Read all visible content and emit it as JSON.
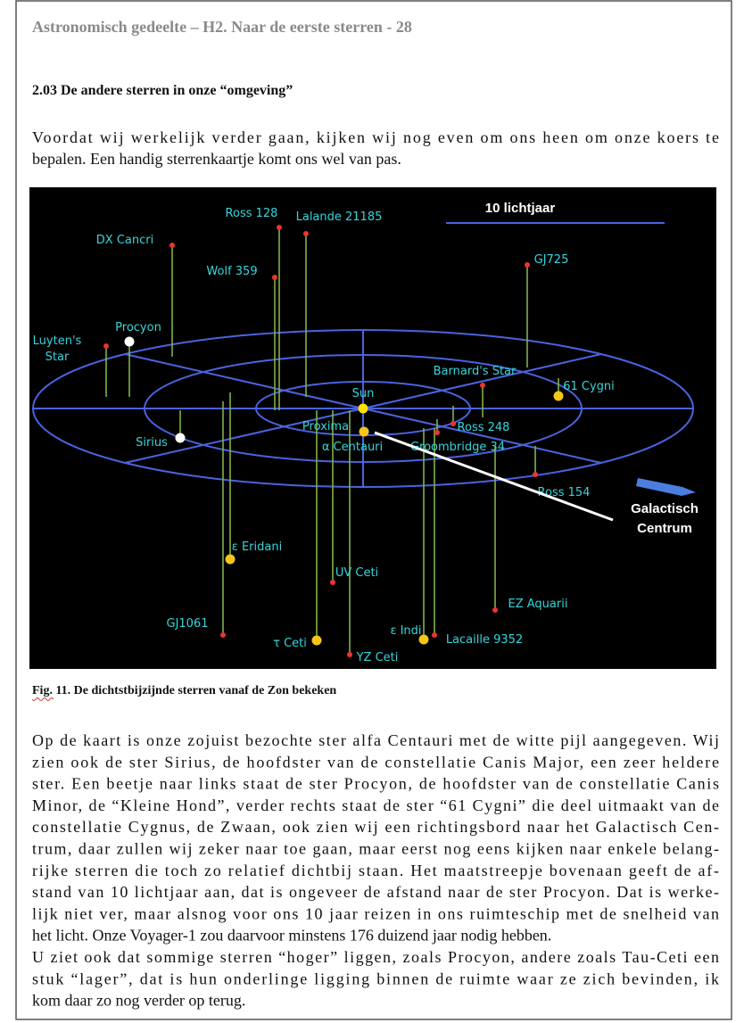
{
  "header": {
    "title": "Astronomisch gedeelte – H2. Naar de eerste sterren - 28"
  },
  "section": {
    "heading": "2.03 De andere sterren in onze “omgeving”"
  },
  "intro": [
    "Voordat wij werkelijk verder gaan, kijken wij nog even om ons heen om onze koers te",
    "bepalen. Een handig sterrenkaartje komt ons wel van pas."
  ],
  "figure": {
    "scale_label": "10 lichtjaar",
    "galactic_label": [
      "Galactisch",
      "Centrum"
    ],
    "stars": [
      {
        "label": "Ross 128"
      },
      {
        "label": "Lalande 21185"
      },
      {
        "label": "DX Cancri"
      },
      {
        "label": "GJ725"
      },
      {
        "label": "Wolf 359"
      },
      {
        "label": "Procyon"
      },
      {
        "label": "Luyten's"
      },
      {
        "label": "Star"
      },
      {
        "label": "Barnard's Star"
      },
      {
        "label": "61 Cygni"
      },
      {
        "label": "Sun"
      },
      {
        "label": "Proxima"
      },
      {
        "label": "α Centauri"
      },
      {
        "label": "Ross 248"
      },
      {
        "label": "Groombridge 34"
      },
      {
        "label": "Sirius"
      },
      {
        "label": "Ross 154"
      },
      {
        "label": "ε Eridani"
      },
      {
        "label": "UV Ceti"
      },
      {
        "label": "EZ Aquarii"
      },
      {
        "label": "GJ1061"
      },
      {
        "label": "τ Ceti"
      },
      {
        "label": "ε Indi"
      },
      {
        "label": "Lacaille 9352"
      },
      {
        "label": "YZ Ceti"
      }
    ],
    "caption": "Fig. 11. De dichtstbijzijnde sterren vanaf de Zon bekeken"
  },
  "body": [
    "Op de kaart is onze zojuist bezochte ster alfa Centauri met de witte pijl aangegeven. Wij",
    "zien ook de ster Sirius, de hoofdster van de constellatie Canis Major, een zeer heldere",
    "ster. Een beetje naar links staat de ster Procyon, de hoofdster van de constellatie Canis",
    "Minor, de “Kleine Hond”, verder rechts staat de ster “61 Cygni” die deel uitmaakt van de",
    "constellatie Cygnus, de Zwaan, ook zien wij een richtingsbord naar het Galactisch Cen-",
    "trum, daar zullen wij zeker naar toe gaan, maar eerst nog eens kijken naar enkele belang-",
    "rijke sterren die toch zo relatief dichtbij staan. Het maatstreepje bovenaan geeft de af-",
    "stand van 10 lichtjaar aan, dat is ongeveer de afstand naar de ster Procyon. Dat is werke-",
    "lijk niet ver, maar alsnog voor ons 10 jaar reizen in ons ruimteschip met de snelheid van",
    "het licht. Onze Voyager-1 zou daarvoor minstens 176 duizend jaar nodig hebben.",
    "U ziet ook dat sommige sterren “hoger” liggen, zoals Procyon, andere zoals Tau-Ceti een",
    "stuk “lager”, dat is hun onderlinge ligging binnen de ruimte waar ze zich bevinden, ik",
    "kom daar zo nog verder op terug."
  ]
}
